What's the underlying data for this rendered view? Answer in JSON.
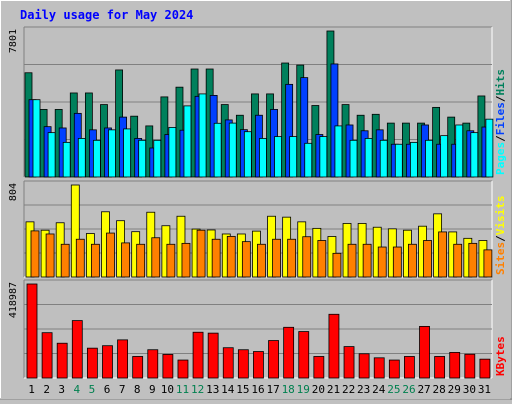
{
  "title": "Daily usage for May 2024",
  "colors": {
    "title": "#0000ff",
    "background": "#c0c0c0",
    "plot": "#bfbfbf",
    "weekday_label": "#000000",
    "weekend_label": "#00804f",
    "hits": "#00805c",
    "files": "#0040ff",
    "pages": "#00ffff",
    "visits": "#ffff00",
    "sites": "#ff8000",
    "kbytes": "#ff0000"
  },
  "chart_data": {
    "type": "bar",
    "categories": [
      "1",
      "2",
      "3",
      "4",
      "5",
      "6",
      "7",
      "8",
      "9",
      "10",
      "11",
      "12",
      "13",
      "14",
      "15",
      "16",
      "17",
      "18",
      "19",
      "20",
      "21",
      "22",
      "23",
      "24",
      "25",
      "26",
      "27",
      "28",
      "29",
      "30",
      "31"
    ],
    "weekend_days": [
      "4",
      "5",
      "11",
      "12",
      "18",
      "19",
      "25",
      "26"
    ],
    "panels": [
      {
        "name": "hits-files-pages",
        "ymax_label": "7801",
        "ymax": 7801,
        "legend": [
          "Pages",
          "Files",
          "Hits"
        ],
        "series": [
          {
            "name": "Hits",
            "color": "#00805c",
            "values": [
              5570,
              3610,
              3610,
              4490,
              4490,
              3870,
              5720,
              3250,
              2730,
              4280,
              4800,
              5770,
              5770,
              3870,
              3300,
              4440,
              4440,
              6090,
              5980,
              3820,
              7801,
              3870,
              3300,
              3350,
              2880,
              2880,
              2880,
              3720,
              3200,
              2880,
              4330
            ]
          },
          {
            "name": "Files",
            "color": "#0040ff",
            "values": [
              4130,
              2690,
              2620,
              3400,
              2520,
              2620,
              3200,
              2060,
              1550,
              2270,
              2500,
              4310,
              4360,
              3050,
              2530,
              3300,
              3610,
              4950,
              5310,
              2270,
              6040,
              2780,
              2470,
              2520,
              1750,
              1750,
              2780,
              1750,
              1750,
              2470,
              2670
            ]
          },
          {
            "name": "Pages",
            "color": "#00ffff",
            "values": [
              4130,
              2370,
              1850,
              2060,
              1960,
              2520,
              2570,
              1960,
              1960,
              2650,
              3800,
              4440,
              2870,
              2880,
              2420,
              2060,
              2160,
              2160,
              1800,
              2160,
              2730,
              1960,
              2060,
              1960,
              1750,
              1850,
              1960,
              2210,
              2780,
              2370,
              3090
            ]
          }
        ]
      },
      {
        "name": "visits-sites",
        "ymax_label": "804",
        "ymax": 804,
        "legend": [
          "Sites",
          "Visits"
        ],
        "series": [
          {
            "name": "Visits",
            "color": "#ffff00",
            "values": [
              482,
              409,
              474,
              804,
              380,
              570,
              492,
              396,
              566,
              448,
              531,
              419,
              411,
              376,
              376,
              401,
              531,
              523,
              482,
              425,
              354,
              468,
              468,
              435,
              421,
              409,
              444,
              552,
              394,
              338,
              319
            ]
          },
          {
            "name": "Sites",
            "color": "#ff8000",
            "values": [
              403,
              376,
              286,
              330,
              286,
              384,
              298,
              286,
              343,
              286,
              294,
              409,
              330,
              355,
              309,
              286,
              330,
              330,
              352,
              319,
              207,
              286,
              286,
              262,
              262,
              286,
              319,
              394,
              286,
              294,
              237
            ]
          }
        ]
      },
      {
        "name": "kbytes",
        "ymax_label": "418987",
        "ymax": 418987,
        "legend": [
          "KBytes"
        ],
        "series": [
          {
            "name": "KBytes",
            "color": "#ff0000",
            "values": [
              418987,
              202000,
              155000,
              256000,
              133000,
              144000,
              170000,
              96000,
              126000,
              105000,
              80000,
              204000,
              200000,
              135000,
              126000,
              118000,
              167000,
              226000,
              207000,
              96000,
              284000,
              140000,
              108000,
              90000,
              80000,
              96000,
              230000,
              96000,
              114000,
              106000,
              84000
            ]
          }
        ]
      }
    ]
  }
}
